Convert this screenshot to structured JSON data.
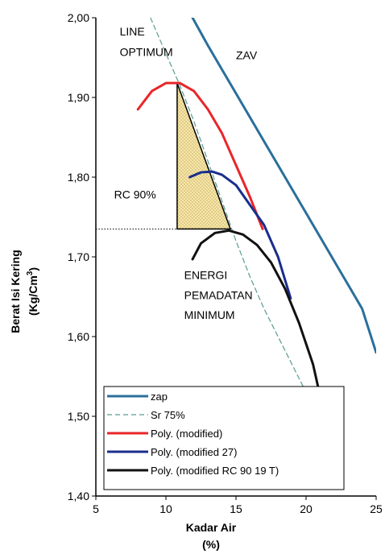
{
  "chart_data": {
    "type": "line",
    "xlabel": "Kadar Air",
    "xlabel_unit": "(%)",
    "ylabel": "Berat Isi Kering",
    "ylabel_unit": "(Kg/Cm",
    "ylabel_unit_sup": "3",
    "ylabel_unit_close": ")",
    "xlim": [
      5,
      25
    ],
    "ylim": [
      1.4,
      2.0
    ],
    "x_ticks": [
      5,
      10,
      15,
      20,
      25
    ],
    "x_tick_labels": [
      "5",
      "10",
      "15",
      "20",
      "25"
    ],
    "y_ticks": [
      1.4,
      1.5,
      1.6,
      1.7,
      1.8,
      1.9,
      2.0
    ],
    "y_tick_labels": [
      "1,40",
      "1,50",
      "1,60",
      "1,70",
      "1,80",
      "1,90",
      "2,00"
    ],
    "grid": false,
    "legend_position": "bottom-left",
    "series": [
      {
        "name": "zap",
        "color": "#2a6f9b",
        "style": "solid",
        "x": [
          11.9,
          13.0,
          14.0,
          15.0,
          16.0,
          17.0,
          18.0,
          19.0,
          20.0,
          21.0,
          22.0,
          23.0,
          24.0,
          25.0
        ],
        "y": [
          2.0,
          1.965,
          1.935,
          1.905,
          1.875,
          1.845,
          1.815,
          1.785,
          1.755,
          1.725,
          1.695,
          1.665,
          1.635,
          1.58
        ]
      },
      {
        "name": "Sr 75%",
        "color": "#5a9a94",
        "style": "dashed",
        "x": [
          8.9,
          10.0,
          11.0,
          12.0,
          13.0,
          14.0,
          15.0,
          16.0,
          17.0,
          18.0,
          19.0,
          20.0,
          21.0,
          22.0,
          22.7
        ],
        "y": [
          2.0,
          1.955,
          1.915,
          1.87,
          1.82,
          1.77,
          1.72,
          1.675,
          1.635,
          1.6,
          1.565,
          1.53,
          1.49,
          1.455,
          1.425
        ]
      },
      {
        "name": "Poly. (modified)",
        "color": "#e8262a",
        "style": "solid",
        "x": [
          8.0,
          9.0,
          10.0,
          11.0,
          12.0,
          13.0,
          14.0,
          15.0,
          16.0,
          16.9
        ],
        "y": [
          1.885,
          1.908,
          1.918,
          1.918,
          1.908,
          1.885,
          1.855,
          1.815,
          1.775,
          1.735
        ]
      },
      {
        "name": "Poly. (modified 27)",
        "color": "#1a2e8c",
        "style": "solid",
        "x": [
          11.7,
          12.5,
          13.3,
          14.0,
          15.0,
          16.0,
          17.0,
          18.0,
          18.9
        ],
        "y": [
          1.8,
          1.806,
          1.807,
          1.803,
          1.79,
          1.765,
          1.74,
          1.7,
          1.648
        ]
      },
      {
        "name": "Poly. (modified RC 90 19 T)",
        "color": "#111111",
        "style": "solid",
        "x": [
          11.9,
          12.5,
          13.5,
          14.5,
          15.5,
          16.5,
          17.5,
          18.5,
          19.5,
          20.5,
          21.2
        ],
        "y": [
          1.697,
          1.717,
          1.73,
          1.733,
          1.728,
          1.715,
          1.693,
          1.66,
          1.617,
          1.565,
          1.51
        ]
      }
    ],
    "shaded_region": {
      "vertices": [
        [
          10.8,
          1.918
        ],
        [
          10.8,
          1.735
        ],
        [
          14.6,
          1.735
        ]
      ],
      "fill": "#f7e7a6"
    },
    "reference_line": {
      "style": "dotted",
      "y": 1.735,
      "x": [
        5.0,
        10.8
      ]
    },
    "annotations": [
      {
        "text": "LINE",
        "x": 6.7,
        "y": 1.978
      },
      {
        "text": "OPTIMUM",
        "x": 6.7,
        "y": 1.952
      },
      {
        "text": "ZAV",
        "x": 15.0,
        "y": 1.948
      },
      {
        "text": "RC 90%",
        "x": 6.3,
        "y": 1.773
      },
      {
        "text": "ENERGI",
        "x": 11.3,
        "y": 1.672
      },
      {
        "text": "PEMADATAN",
        "x": 11.3,
        "y": 1.647
      },
      {
        "text": "MINIMUM",
        "x": 11.3,
        "y": 1.622
      }
    ]
  }
}
